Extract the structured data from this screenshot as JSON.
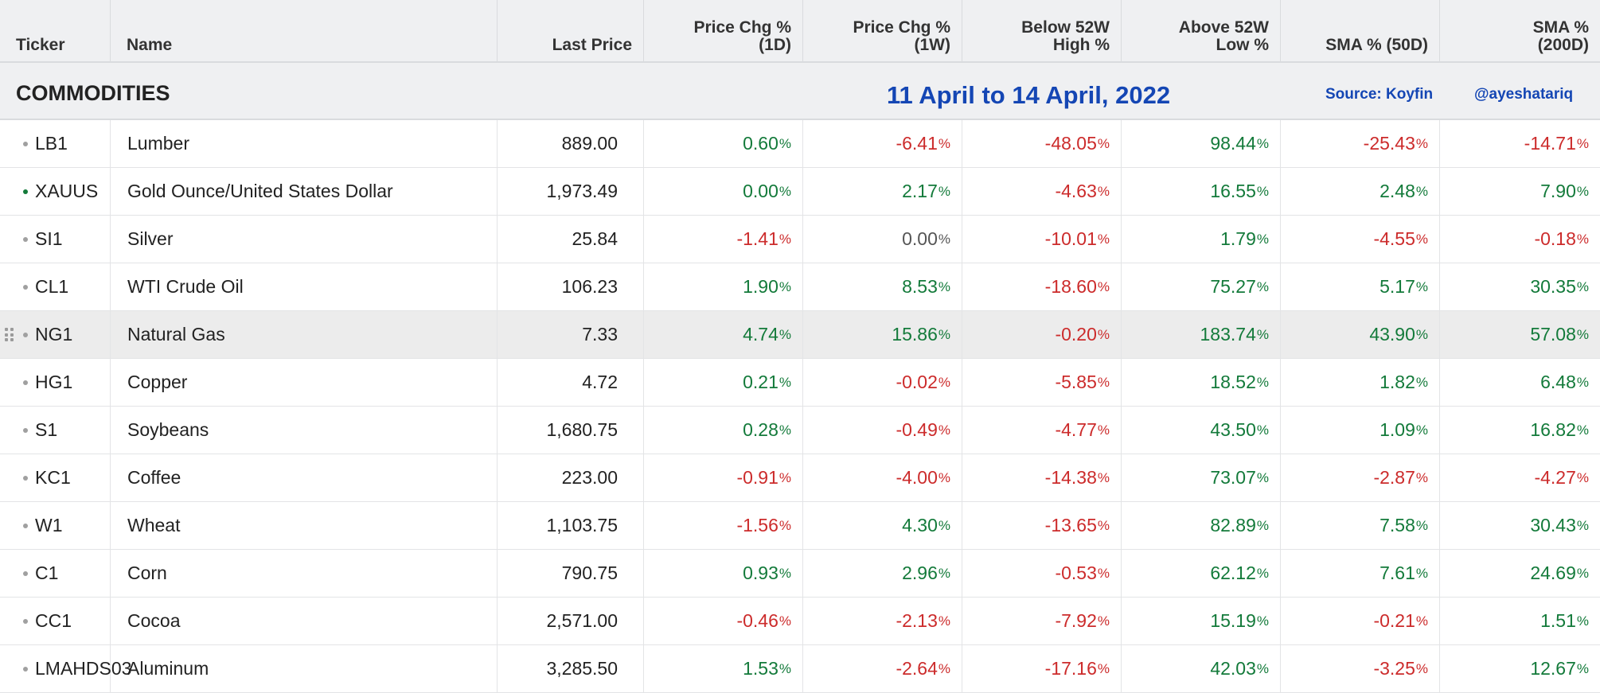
{
  "columns": [
    "Ticker",
    "Name",
    "Last Price",
    "Price Chg %\n(1D)",
    "Price Chg %\n(1W)",
    "Below 52W\nHigh %",
    "Above 52W\nLow %",
    "SMA % (50D)",
    "SMA %\n(200D)"
  ],
  "category": {
    "label": "COMMODITIES",
    "date_range": "11 April to 14 April, 2022",
    "source": "Source: Koyfin",
    "handle": "@ayeshatariq"
  },
  "colors": {
    "positive": "#137a3a",
    "negative": "#cc2b2b",
    "accent": "#1446b4"
  },
  "rows": [
    {
      "ticker": "LB1",
      "name": "Lumber",
      "price": "889.00",
      "chg1d": "0.60",
      "chg1w": "-6.41",
      "below_high": "-48.05",
      "above_low": "98.44",
      "sma50": "-25.43",
      "sma200": "-14.71"
    },
    {
      "ticker": "XAUUS",
      "name": "Gold Ounce/United States Dollar",
      "price": "1,973.49",
      "chg1d": "0.00",
      "chg1w": "2.17",
      "below_high": "-4.63",
      "above_low": "16.55",
      "sma50": "2.48",
      "sma200": "7.90"
    },
    {
      "ticker": "SI1",
      "name": "Silver",
      "price": "25.84",
      "chg1d": "-1.41",
      "chg1w": "0.00",
      "below_high": "-10.01",
      "above_low": "1.79",
      "sma50": "-4.55",
      "sma200": "-0.18"
    },
    {
      "ticker": "CL1",
      "name": "WTI Crude Oil",
      "price": "106.23",
      "chg1d": "1.90",
      "chg1w": "8.53",
      "below_high": "-18.60",
      "above_low": "75.27",
      "sma50": "5.17",
      "sma200": "30.35"
    },
    {
      "ticker": "NG1",
      "name": "Natural Gas",
      "price": "7.33",
      "chg1d": "4.74",
      "chg1w": "15.86",
      "below_high": "-0.20",
      "above_low": "183.74",
      "sma50": "43.90",
      "sma200": "57.08"
    },
    {
      "ticker": "HG1",
      "name": "Copper",
      "price": "4.72",
      "chg1d": "0.21",
      "chg1w": "-0.02",
      "below_high": "-5.85",
      "above_low": "18.52",
      "sma50": "1.82",
      "sma200": "6.48"
    },
    {
      "ticker": "S1",
      "name": "Soybeans",
      "price": "1,680.75",
      "chg1d": "0.28",
      "chg1w": "-0.49",
      "below_high": "-4.77",
      "above_low": "43.50",
      "sma50": "1.09",
      "sma200": "16.82"
    },
    {
      "ticker": "KC1",
      "name": "Coffee",
      "price": "223.00",
      "chg1d": "-0.91",
      "chg1w": "-4.00",
      "below_high": "-14.38",
      "above_low": "73.07",
      "sma50": "-2.87",
      "sma200": "-4.27"
    },
    {
      "ticker": "W1",
      "name": "Wheat",
      "price": "1,103.75",
      "chg1d": "-1.56",
      "chg1w": "4.30",
      "below_high": "-13.65",
      "above_low": "82.89",
      "sma50": "7.58",
      "sma200": "30.43"
    },
    {
      "ticker": "C1",
      "name": "Corn",
      "price": "790.75",
      "chg1d": "0.93",
      "chg1w": "2.96",
      "below_high": "-0.53",
      "above_low": "62.12",
      "sma50": "7.61",
      "sma200": "24.69"
    },
    {
      "ticker": "CC1",
      "name": "Cocoa",
      "price": "2,571.00",
      "chg1d": "-0.46",
      "chg1w": "-2.13",
      "below_high": "-7.92",
      "above_low": "15.19",
      "sma50": "-0.21",
      "sma200": "1.51"
    },
    {
      "ticker": "LMAHDS03",
      "name": "Aluminum",
      "price": "3,285.50",
      "chg1d": "1.53",
      "chg1w": "-2.64",
      "below_high": "-17.16",
      "above_low": "42.03",
      "sma50": "-3.25",
      "sma200": "12.67"
    }
  ],
  "percent_symbol": "%"
}
